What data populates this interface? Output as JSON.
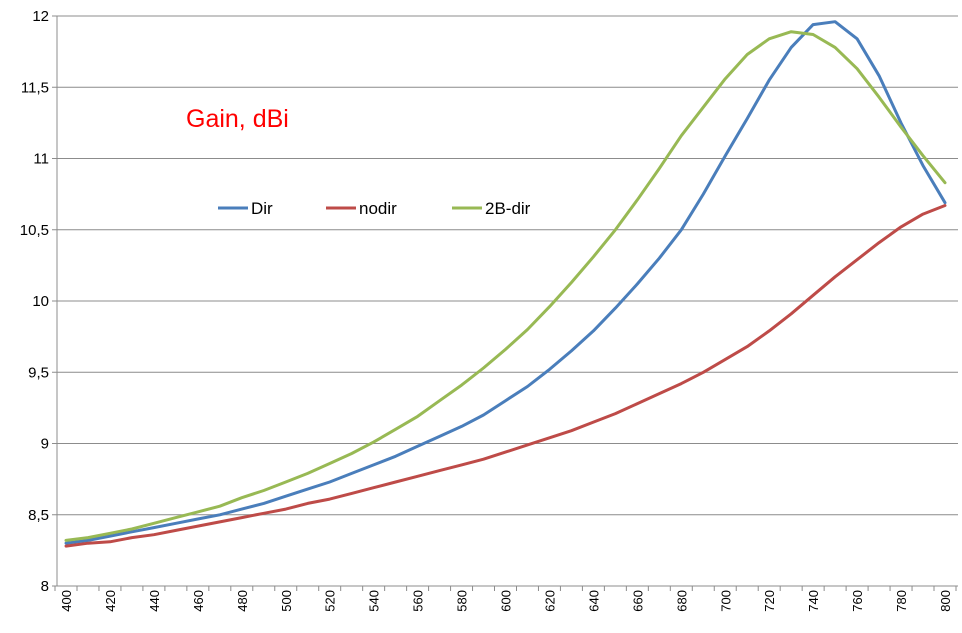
{
  "chart_data": {
    "type": "line",
    "title": "Gain, dBi",
    "title_color": "#ff0000",
    "xlabel": "",
    "ylabel": "",
    "x": [
      400,
      410,
      420,
      430,
      440,
      450,
      460,
      470,
      480,
      490,
      500,
      510,
      520,
      530,
      540,
      550,
      560,
      570,
      580,
      590,
      600,
      610,
      620,
      630,
      640,
      650,
      660,
      670,
      680,
      690,
      700,
      710,
      720,
      730,
      740,
      750,
      760,
      770,
      780,
      790,
      800
    ],
    "x_tick_labels": [
      "400",
      "420",
      "440",
      "460",
      "480",
      "500",
      "520",
      "540",
      "560",
      "580",
      "600",
      "620",
      "640",
      "660",
      "680",
      "700",
      "720",
      "740",
      "760",
      "780",
      "800"
    ],
    "y_tick_labels": [
      "8",
      "8,5",
      "9",
      "9,5",
      "10",
      "10,5",
      "11",
      "11,5",
      "12"
    ],
    "ylim": [
      8,
      12
    ],
    "grid": "horizontal",
    "legend_position": "upper-left-inside",
    "series": [
      {
        "name": "Dir",
        "color": "#4a7ebb",
        "values": [
          8.3,
          8.32,
          8.35,
          8.38,
          8.41,
          8.44,
          8.47,
          8.5,
          8.54,
          8.58,
          8.63,
          8.68,
          8.73,
          8.79,
          8.85,
          8.91,
          8.98,
          9.05,
          9.12,
          9.2,
          9.3,
          9.4,
          9.52,
          9.65,
          9.79,
          9.95,
          10.12,
          10.3,
          10.5,
          10.75,
          11.02,
          11.28,
          11.55,
          11.78,
          11.94,
          11.96,
          11.84,
          11.58,
          11.25,
          10.95,
          10.69
        ]
      },
      {
        "name": "nodir",
        "color": "#be4b48",
        "values": [
          8.28,
          8.3,
          8.31,
          8.34,
          8.36,
          8.39,
          8.42,
          8.45,
          8.48,
          8.51,
          8.54,
          8.58,
          8.61,
          8.65,
          8.69,
          8.73,
          8.77,
          8.81,
          8.85,
          8.89,
          8.94,
          8.99,
          9.04,
          9.09,
          9.15,
          9.21,
          9.28,
          9.35,
          9.42,
          9.5,
          9.59,
          9.68,
          9.79,
          9.91,
          10.04,
          10.17,
          10.29,
          10.41,
          10.52,
          10.61,
          10.67
        ]
      },
      {
        "name": "2B-dir",
        "color": "#98b954",
        "values": [
          8.32,
          8.34,
          8.37,
          8.4,
          8.44,
          8.48,
          8.52,
          8.56,
          8.62,
          8.67,
          8.73,
          8.79,
          8.86,
          8.93,
          9.01,
          9.1,
          9.19,
          9.3,
          9.41,
          9.53,
          9.66,
          9.8,
          9.96,
          10.13,
          10.31,
          10.5,
          10.71,
          10.93,
          11.16,
          11.36,
          11.56,
          11.73,
          11.84,
          11.89,
          11.87,
          11.78,
          11.63,
          11.43,
          11.22,
          11.02,
          10.83
        ]
      }
    ]
  }
}
